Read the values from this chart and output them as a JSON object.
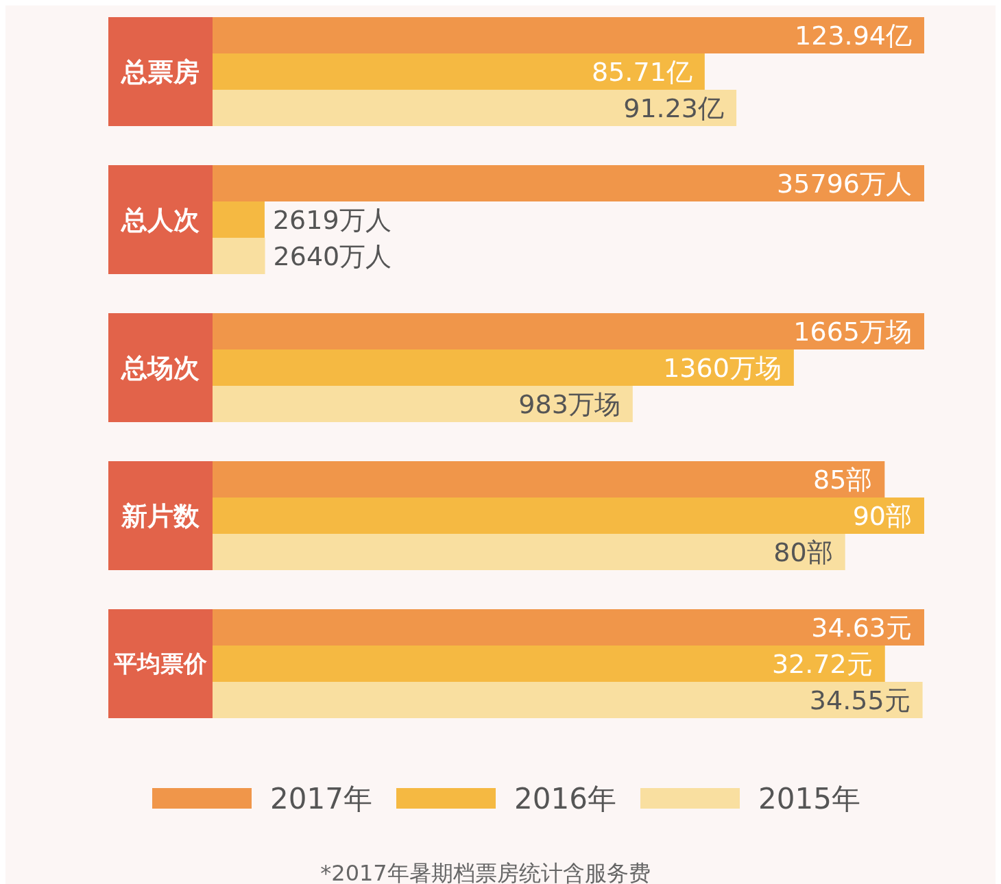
{
  "chart_data": [
    {
      "type": "bar",
      "orientation": "horizontal",
      "categories": [
        "总票房"
      ],
      "legend": false,
      "series": [
        {
          "color": "#f0964a",
          "values": [
            123.94
          ],
          "value_labels": [
            "123.94亿"
          ]
        },
        {
          "color": "#f5b942",
          "values": [
            85.71
          ],
          "value_labels": [
            "85.71亿"
          ]
        },
        {
          "color": "#f9dfa0",
          "values": [
            91.23
          ],
          "value_labels": [
            "91.23亿"
          ]
        }
      ]
    },
    {
      "type": "bar",
      "orientation": "horizontal",
      "categories": [
        "总人次"
      ],
      "legend": false,
      "series": [
        {
          "color": "#f0964a",
          "values": [
            35796
          ],
          "value_labels": [
            "35796万人"
          ]
        },
        {
          "color": "#f5b942",
          "values": [
            2619
          ],
          "value_labels": [
            "2619万人"
          ]
        },
        {
          "color": "#f9dfa0",
          "values": [
            2640
          ],
          "value_labels": [
            "2640万人"
          ]
        }
      ]
    },
    {
      "type": "bar",
      "orientation": "horizontal",
      "categories": [
        "总场次"
      ],
      "legend": false,
      "series": [
        {
          "color": "#f0964a",
          "values": [
            1665
          ],
          "value_labels": [
            "1665万场"
          ]
        },
        {
          "color": "#f5b942",
          "values": [
            1360
          ],
          "value_labels": [
            "1360万场"
          ]
        },
        {
          "color": "#f9dfa0",
          "values": [
            983
          ],
          "value_labels": [
            "983万场"
          ]
        }
      ]
    },
    {
      "type": "bar",
      "orientation": "horizontal",
      "categories": [
        "新片数"
      ],
      "legend": false,
      "series": [
        {
          "color": "#f0964a",
          "values": [
            85
          ],
          "value_labels": [
            "85部"
          ]
        },
        {
          "color": "#f5b942",
          "values": [
            90
          ],
          "value_labels": [
            "90部"
          ]
        },
        {
          "color": "#f9dfa0",
          "values": [
            80
          ],
          "value_labels": [
            "80部"
          ]
        }
      ]
    },
    {
      "type": "bar",
      "orientation": "horizontal",
      "categories": [
        "平均票价"
      ],
      "legend": "bottom",
      "annotations": [
        "*2017年暑期档票房统计含服务费"
      ],
      "series": [
        {
          "name": "2017年",
          "color": "#f0964a",
          "values": [
            34.63
          ],
          "value_labels": [
            "34.63元"
          ]
        },
        {
          "name": "2016年",
          "color": "#f5b942",
          "values": [
            32.72
          ],
          "value_labels": [
            "32.72元"
          ]
        },
        {
          "name": "2015年",
          "color": "#f9dfa0",
          "values": [
            34.55
          ],
          "value_labels": [
            "34.55元"
          ]
        }
      ]
    }
  ]
}
